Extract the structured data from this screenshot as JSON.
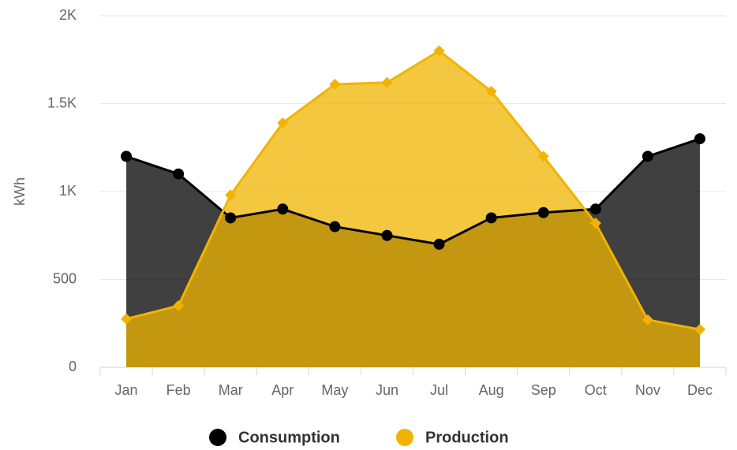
{
  "chart_data": {
    "type": "area",
    "y_label": "kWh",
    "categories": [
      "Jan",
      "Feb",
      "Mar",
      "Apr",
      "May",
      "Jun",
      "Jul",
      "Aug",
      "Sep",
      "Oct",
      "Nov",
      "Dec"
    ],
    "series": [
      {
        "name": "Consumption",
        "color": "#000000",
        "values": [
          1200,
          1100,
          850,
          900,
          800,
          750,
          700,
          850,
          880,
          900,
          1200,
          1300
        ]
      },
      {
        "name": "Production",
        "color": "#f0b400",
        "values": [
          275,
          350,
          980,
          1390,
          1610,
          1620,
          1800,
          1570,
          1200,
          820,
          270,
          215
        ]
      }
    ],
    "ylim": [
      0,
      2000
    ],
    "yticks": [
      0,
      500,
      {
        "value": 1000,
        "label": "1K"
      },
      {
        "value": 1500,
        "label": "1.5K"
      },
      {
        "value": 2000,
        "label": "2K"
      }
    ],
    "grid": true,
    "legend": "bottom"
  }
}
